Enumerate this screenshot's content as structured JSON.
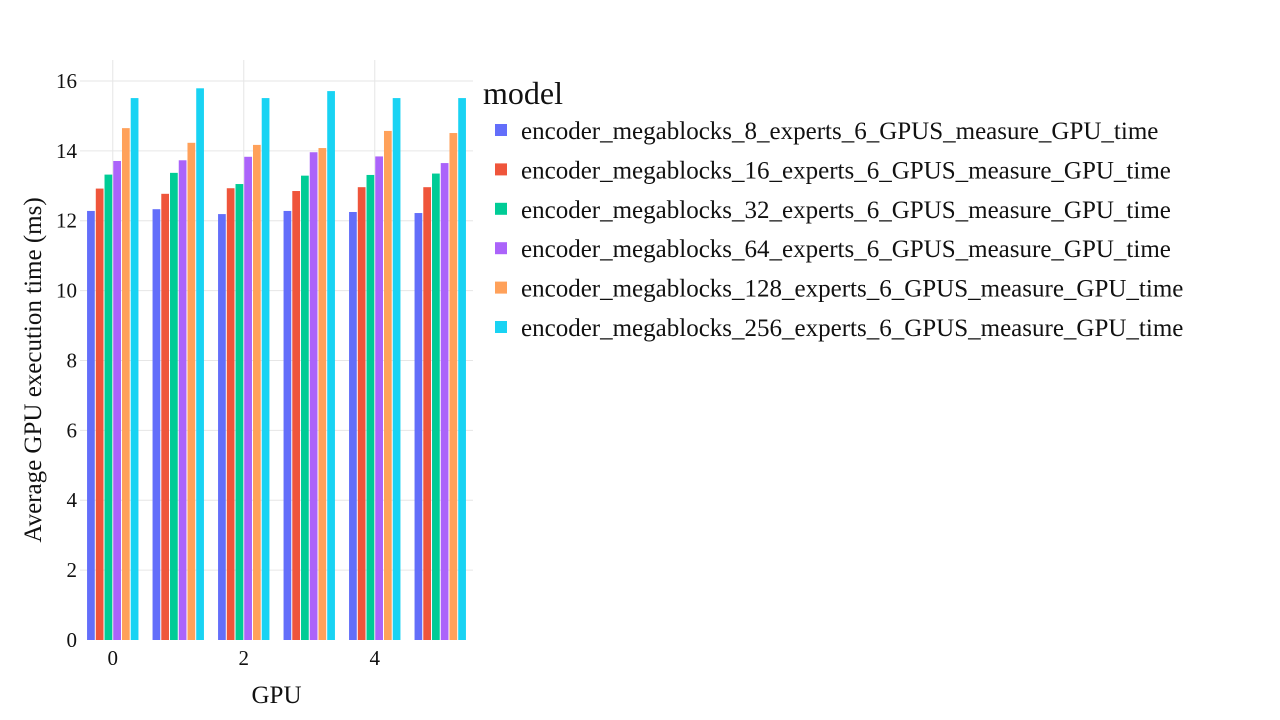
{
  "chart_data": {
    "type": "bar",
    "xlabel": "GPU",
    "ylabel": "Average GPU execution time (ms)",
    "categories": [
      0,
      1,
      2,
      3,
      4,
      5
    ],
    "xticks": [
      0,
      2,
      4
    ],
    "ylim": [
      0,
      16.6
    ],
    "yticks": [
      0,
      2,
      4,
      6,
      8,
      10,
      12,
      14,
      16
    ],
    "grid": true,
    "legend_title": "model",
    "legend_position": "right",
    "series": [
      {
        "name": "encoder_megablocks_8_experts_6_GPUS_measure_GPU_time",
        "color": "#636efa",
        "values": [
          12.28,
          12.33,
          12.19,
          12.28,
          12.25,
          12.22
        ]
      },
      {
        "name": "encoder_megablocks_16_experts_6_GPUS_measure_GPU_time",
        "color": "#ef553b",
        "values": [
          12.92,
          12.77,
          12.93,
          12.85,
          12.96,
          12.96
        ]
      },
      {
        "name": "encoder_megablocks_32_experts_6_GPUS_measure_GPU_time",
        "color": "#00cc96",
        "values": [
          13.32,
          13.37,
          13.05,
          13.29,
          13.31,
          13.35
        ]
      },
      {
        "name": "encoder_megablocks_64_experts_6_GPUS_measure_GPU_time",
        "color": "#ab63fa",
        "values": [
          13.71,
          13.73,
          13.83,
          13.96,
          13.84,
          13.65
        ]
      },
      {
        "name": "encoder_megablocks_128_experts_6_GPUS_measure_GPU_time",
        "color": "#ffa15a",
        "values": [
          14.65,
          14.23,
          14.17,
          14.08,
          14.57,
          14.51
        ]
      },
      {
        "name": "encoder_megablocks_256_experts_6_GPUS_measure_GPU_time",
        "color": "#19d3f3",
        "values": [
          15.51,
          15.79,
          15.51,
          15.71,
          15.51,
          15.51
        ]
      }
    ]
  }
}
